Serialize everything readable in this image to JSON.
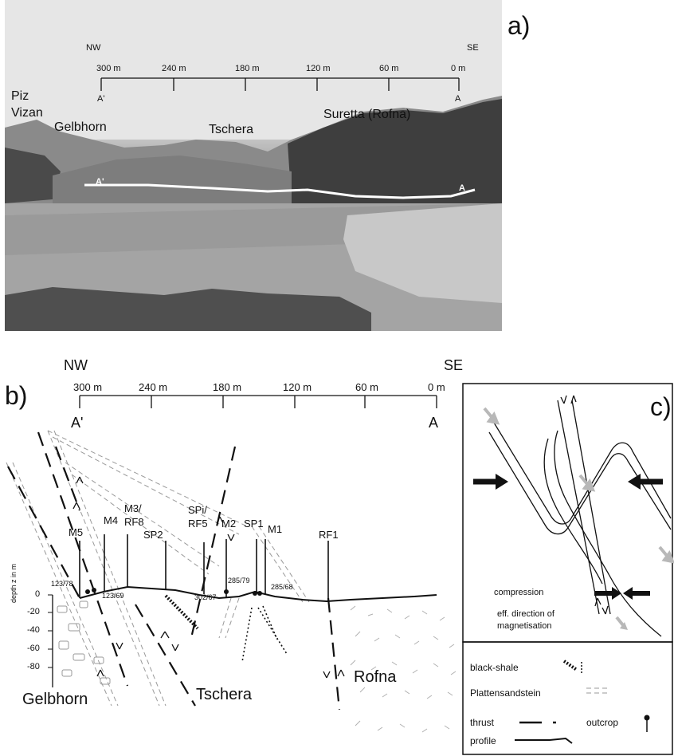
{
  "panel_a": {
    "label": "a)",
    "nw": "NW",
    "se": "SE",
    "ticks": [
      "300 m",
      "240 m",
      "180 m",
      "120 m",
      "60 m",
      "0 m"
    ],
    "end_left": "A'",
    "end_right": "A",
    "place_piz": "Piz",
    "place_vizan": "Vizan",
    "place_gelbhorn": "Gelbhorn",
    "place_tschera": "Tschera",
    "place_suretta": "Suretta (Rofna)",
    "line_left": "A'",
    "line_right": "A"
  },
  "panel_b": {
    "label": "b)",
    "nw": "NW",
    "se": "SE",
    "ticks": [
      "300 m",
      "240 m",
      "180 m",
      "120 m",
      "60 m",
      "0 m"
    ],
    "end_left": "A'",
    "end_right": "A",
    "depth_axis_label": "depth z in m",
    "depth_ticks": [
      "0",
      "-20",
      "-40",
      "-60",
      "-80"
    ],
    "sites": {
      "m5": "M5",
      "m4": "M4",
      "m3": "M3/",
      "rf8": "RF8",
      "sp2": "SP2",
      "spi": "SPi/",
      "rf5": "RF5",
      "m2": "M2",
      "sp1": "SP1",
      "m1": "M1",
      "rf1": "RF1"
    },
    "orientations": {
      "o1": "123/78",
      "o2": "123/69",
      "o3": "302/67",
      "o4": "285/79",
      "o5": "285/68"
    },
    "units": {
      "gelbhorn": "Gelbhorn",
      "tschera": "Tschera",
      "rofna": "Rofna"
    }
  },
  "panel_c": {
    "label": "c)",
    "compression": "compression",
    "magnetisation_1": "eff. direction of",
    "magnetisation_2": "magnetisation"
  },
  "legend": {
    "black_shale": "black-shale",
    "plattensandstein": "Plattensandstein",
    "thrust": "thrust",
    "outcrop": "outcrop",
    "profile": "profile"
  },
  "colors": {
    "ink": "#111111",
    "grey_arrow": "#b8b8b8",
    "dash_grey": "#9a9a9a",
    "profile_white": "#ffffff"
  }
}
